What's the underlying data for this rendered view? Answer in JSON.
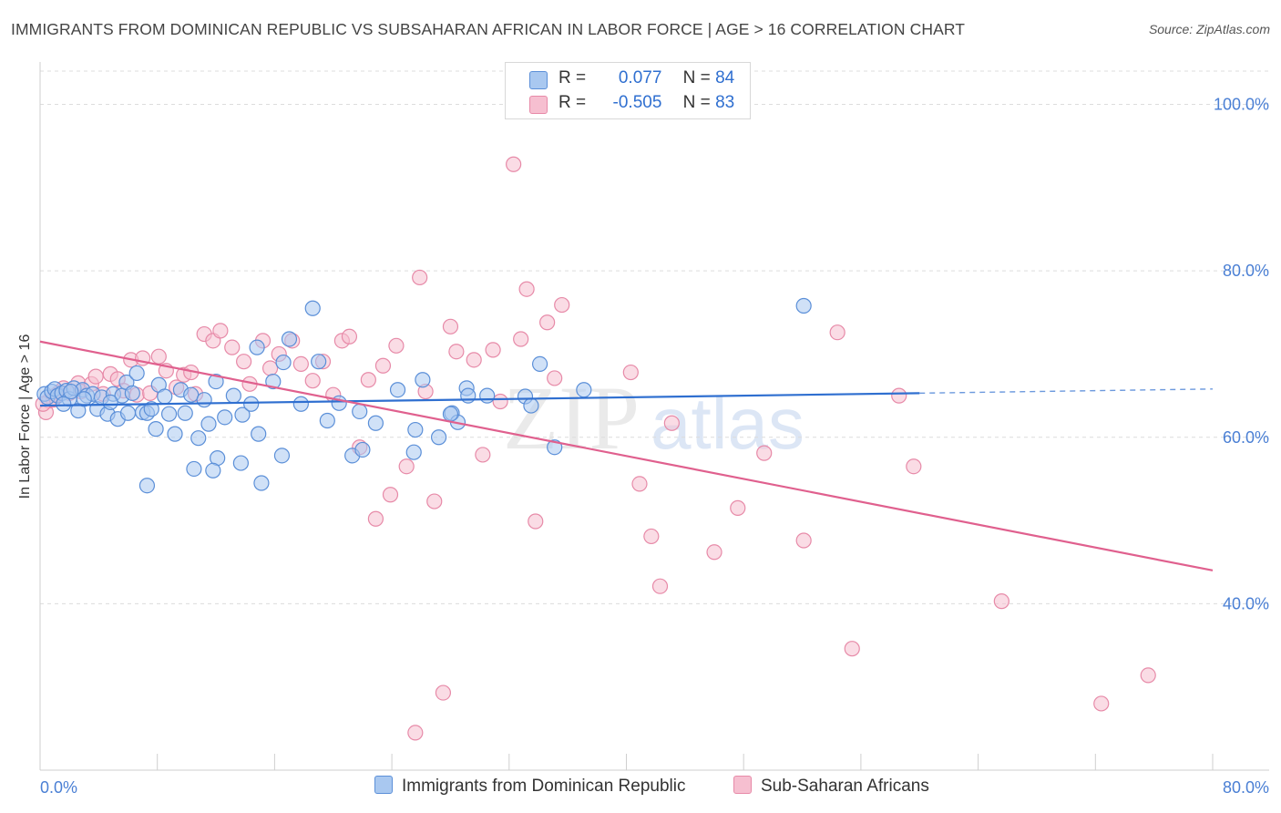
{
  "header": {
    "title": "IMMIGRANTS FROM DOMINICAN REPUBLIC VS SUBSAHARAN AFRICAN IN LABOR FORCE | AGE > 16 CORRELATION CHART",
    "source": "Source: ZipAtlas.com"
  },
  "colors": {
    "blue_fill": "#a9c8f0",
    "blue_stroke": "#5b8fd8",
    "blue_line": "#2f6fd0",
    "pink_fill": "#f6bfd0",
    "pink_stroke": "#e78aa8",
    "pink_line": "#e0608e",
    "tick_text": "#4a7fd4"
  },
  "legend": {
    "rows": [
      {
        "r_label": "R =",
        "r_value": "0.077",
        "n_label": "N =",
        "n_value": "84"
      },
      {
        "r_label": "R =",
        "r_value": "-0.505",
        "n_label": "N =",
        "n_value": "83"
      }
    ]
  },
  "bottom_legend": {
    "series1": "Immigrants from Dominican Republic",
    "series2": "Sub-Saharan Africans"
  },
  "watermark": {
    "zip": "ZIP",
    "atlas": "atlas"
  },
  "chart_data": {
    "type": "scatter",
    "title": "IMMIGRANTS FROM DOMINICAN REPUBLIC VS SUBSAHARAN AFRICAN IN LABOR FORCE | AGE > 16 CORRELATION CHART",
    "xlabel": "",
    "ylabel": "In Labor Force | Age > 16",
    "xlim": [
      0,
      80
    ],
    "ylim": [
      20,
      104
    ],
    "x_tick_labels": [
      "0.0%",
      "80.0%"
    ],
    "y_ticks": [
      40,
      60,
      80,
      100
    ],
    "y_tick_labels": [
      "40.0%",
      "60.0%",
      "80.0%",
      "100.0%"
    ],
    "grid": true,
    "legend_position": "top-center",
    "series": [
      {
        "name": "Immigrants from Dominican Republic",
        "r": 0.077,
        "n": 84,
        "trend": {
          "x": [
            0,
            60
          ],
          "y": [
            63.8,
            65.3
          ],
          "dashed_extension_to_x": 80,
          "dashed_end_y": 65.8
        },
        "points": [
          [
            0.3,
            65.2
          ],
          [
            0.5,
            64.8
          ],
          [
            0.8,
            65.5
          ],
          [
            1.0,
            65.8
          ],
          [
            1.2,
            65.0
          ],
          [
            1.5,
            65.3
          ],
          [
            1.8,
            65.6
          ],
          [
            2.0,
            64.6
          ],
          [
            2.3,
            65.9
          ],
          [
            2.6,
            63.2
          ],
          [
            2.9,
            65.7
          ],
          [
            3.2,
            65.0
          ],
          [
            3.6,
            65.2
          ],
          [
            3.9,
            63.4
          ],
          [
            4.2,
            64.8
          ],
          [
            4.6,
            62.8
          ],
          [
            5.0,
            65.2
          ],
          [
            5.3,
            62.2
          ],
          [
            5.6,
            65.0
          ],
          [
            5.9,
            66.6
          ],
          [
            6.0,
            62.9
          ],
          [
            6.3,
            65.3
          ],
          [
            6.6,
            67.7
          ],
          [
            7.0,
            63.0
          ],
          [
            7.3,
            62.9
          ],
          [
            7.6,
            63.4
          ],
          [
            7.9,
            61.0
          ],
          [
            8.1,
            66.3
          ],
          [
            8.5,
            64.9
          ],
          [
            8.8,
            62.8
          ],
          [
            9.2,
            60.4
          ],
          [
            9.6,
            65.7
          ],
          [
            9.9,
            62.9
          ],
          [
            10.3,
            65.1
          ],
          [
            10.8,
            59.9
          ],
          [
            11.2,
            64.5
          ],
          [
            11.5,
            61.6
          ],
          [
            12.0,
            66.7
          ],
          [
            12.6,
            62.4
          ],
          [
            13.2,
            65.0
          ],
          [
            13.8,
            62.7
          ],
          [
            14.4,
            64.0
          ],
          [
            14.9,
            60.4
          ],
          [
            15.9,
            66.7
          ],
          [
            16.5,
            57.8
          ],
          [
            17.0,
            71.8
          ],
          [
            17.8,
            64.0
          ],
          [
            18.6,
            75.5
          ],
          [
            19.0,
            69.1
          ],
          [
            19.6,
            62.0
          ],
          [
            20.4,
            64.1
          ],
          [
            21.3,
            57.8
          ],
          [
            21.8,
            63.1
          ],
          [
            22.9,
            61.7
          ],
          [
            24.4,
            65.7
          ],
          [
            25.5,
            58.2
          ],
          [
            25.6,
            60.9
          ],
          [
            26.1,
            66.9
          ],
          [
            27.2,
            60.0
          ],
          [
            28.1,
            62.9
          ],
          [
            28.5,
            61.8
          ],
          [
            29.1,
            65.9
          ],
          [
            29.2,
            65.0
          ],
          [
            30.5,
            65.0
          ],
          [
            33.1,
            64.9
          ],
          [
            34.1,
            68.8
          ],
          [
            35.1,
            58.8
          ],
          [
            37.1,
            65.7
          ],
          [
            52.1,
            75.8
          ],
          [
            16.6,
            69.0
          ],
          [
            15.1,
            54.5
          ],
          [
            14.8,
            70.8
          ],
          [
            12.1,
            57.5
          ],
          [
            13.7,
            56.9
          ],
          [
            11.8,
            56.0
          ],
          [
            10.5,
            56.2
          ],
          [
            7.3,
            54.2
          ],
          [
            4.8,
            64.2
          ],
          [
            3.0,
            64.6
          ],
          [
            1.6,
            64.0
          ],
          [
            2.1,
            65.5
          ],
          [
            33.5,
            63.8
          ],
          [
            28.0,
            62.8
          ],
          [
            22.0,
            58.5
          ]
        ]
      },
      {
        "name": "Sub-Saharan Africans",
        "r": -0.505,
        "n": 83,
        "trend": {
          "x": [
            0,
            80
          ],
          "y": [
            71.5,
            44.0
          ]
        },
        "points": [
          [
            0.4,
            63.0
          ],
          [
            0.6,
            64.4
          ],
          [
            0.9,
            64.5
          ],
          [
            1.3,
            65.4
          ],
          [
            1.6,
            65.9
          ],
          [
            2.0,
            65.3
          ],
          [
            2.6,
            66.5
          ],
          [
            2.8,
            65.5
          ],
          [
            3.5,
            66.4
          ],
          [
            3.8,
            67.3
          ],
          [
            4.3,
            65.2
          ],
          [
            4.8,
            67.6
          ],
          [
            5.3,
            67.0
          ],
          [
            5.7,
            65.6
          ],
          [
            6.2,
            69.3
          ],
          [
            6.6,
            65.1
          ],
          [
            7.0,
            69.5
          ],
          [
            7.5,
            65.3
          ],
          [
            8.1,
            69.7
          ],
          [
            8.6,
            68.0
          ],
          [
            9.3,
            66.0
          ],
          [
            9.8,
            67.5
          ],
          [
            10.3,
            67.8
          ],
          [
            10.6,
            65.2
          ],
          [
            11.2,
            72.4
          ],
          [
            11.8,
            71.6
          ],
          [
            12.3,
            72.8
          ],
          [
            13.1,
            70.8
          ],
          [
            13.9,
            69.1
          ],
          [
            14.3,
            66.4
          ],
          [
            15.2,
            71.6
          ],
          [
            15.7,
            68.3
          ],
          [
            16.3,
            70.0
          ],
          [
            17.2,
            71.6
          ],
          [
            17.8,
            68.8
          ],
          [
            18.6,
            66.8
          ],
          [
            19.3,
            69.1
          ],
          [
            20.0,
            65.1
          ],
          [
            20.6,
            71.6
          ],
          [
            21.1,
            72.1
          ],
          [
            21.8,
            58.8
          ],
          [
            22.4,
            66.9
          ],
          [
            22.9,
            50.2
          ],
          [
            23.4,
            68.6
          ],
          [
            23.9,
            53.1
          ],
          [
            24.3,
            71.0
          ],
          [
            25.0,
            56.5
          ],
          [
            25.6,
            24.5
          ],
          [
            25.9,
            79.2
          ],
          [
            26.3,
            65.5
          ],
          [
            26.9,
            52.3
          ],
          [
            27.5,
            29.3
          ],
          [
            28.0,
            73.3
          ],
          [
            28.4,
            70.3
          ],
          [
            29.6,
            69.3
          ],
          [
            30.2,
            57.9
          ],
          [
            30.9,
            70.5
          ],
          [
            31.4,
            64.3
          ],
          [
            32.3,
            92.8
          ],
          [
            32.8,
            71.8
          ],
          [
            33.2,
            77.8
          ],
          [
            33.8,
            49.9
          ],
          [
            34.6,
            73.8
          ],
          [
            35.1,
            67.1
          ],
          [
            35.6,
            75.9
          ],
          [
            40.3,
            67.8
          ],
          [
            40.9,
            54.4
          ],
          [
            41.7,
            48.1
          ],
          [
            42.3,
            42.1
          ],
          [
            43.1,
            61.7
          ],
          [
            46.0,
            46.2
          ],
          [
            47.6,
            51.5
          ],
          [
            49.4,
            58.1
          ],
          [
            52.1,
            47.6
          ],
          [
            54.4,
            72.6
          ],
          [
            55.4,
            34.6
          ],
          [
            58.6,
            65.0
          ],
          [
            59.6,
            56.5
          ],
          [
            65.6,
            40.3
          ],
          [
            72.4,
            28.0
          ],
          [
            75.6,
            31.4
          ],
          [
            0.2,
            64.0
          ],
          [
            1.1,
            65.1
          ]
        ]
      }
    ]
  }
}
